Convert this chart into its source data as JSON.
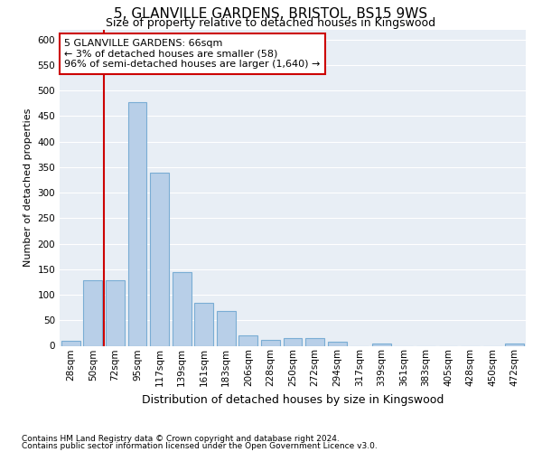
{
  "title": "5, GLANVILLE GARDENS, BRISTOL, BS15 9WS",
  "subtitle": "Size of property relative to detached houses in Kingswood",
  "xlabel_bottom": "Distribution of detached houses by size in Kingswood",
  "ylabel": "Number of detached properties",
  "footer1": "Contains HM Land Registry data © Crown copyright and database right 2024.",
  "footer2": "Contains public sector information licensed under the Open Government Licence v3.0.",
  "bar_labels": [
    "28sqm",
    "50sqm",
    "72sqm",
    "95sqm",
    "117sqm",
    "139sqm",
    "161sqm",
    "183sqm",
    "206sqm",
    "228sqm",
    "250sqm",
    "272sqm",
    "294sqm",
    "317sqm",
    "339sqm",
    "361sqm",
    "383sqm",
    "405sqm",
    "428sqm",
    "450sqm",
    "472sqm"
  ],
  "bar_values": [
    10,
    128,
    128,
    477,
    340,
    145,
    85,
    68,
    20,
    12,
    15,
    15,
    8,
    0,
    5,
    0,
    0,
    0,
    0,
    0,
    5
  ],
  "bar_color": "#b8cfe8",
  "bar_edge_color": "#7aadd4",
  "annotation_label": "5 GLANVILLE GARDENS: 66sqm",
  "annotation_line1": "← 3% of detached houses are smaller (58)",
  "annotation_line2": "96% of semi-detached houses are larger (1,640) →",
  "annotation_box_color": "#ffffff",
  "annotation_box_edge": "#cc0000",
  "vline_color": "#cc0000",
  "vline_x_index": 2,
  "ylim": [
    0,
    620
  ],
  "yticks": [
    0,
    50,
    100,
    150,
    200,
    250,
    300,
    350,
    400,
    450,
    500,
    550,
    600
  ],
  "plot_bg_color": "#e8eef5",
  "grid_color": "#ffffff",
  "title_fontsize": 11,
  "subtitle_fontsize": 9,
  "ylabel_fontsize": 8,
  "xlabel_fontsize": 9,
  "tick_fontsize": 7.5,
  "footer_fontsize": 6.5
}
